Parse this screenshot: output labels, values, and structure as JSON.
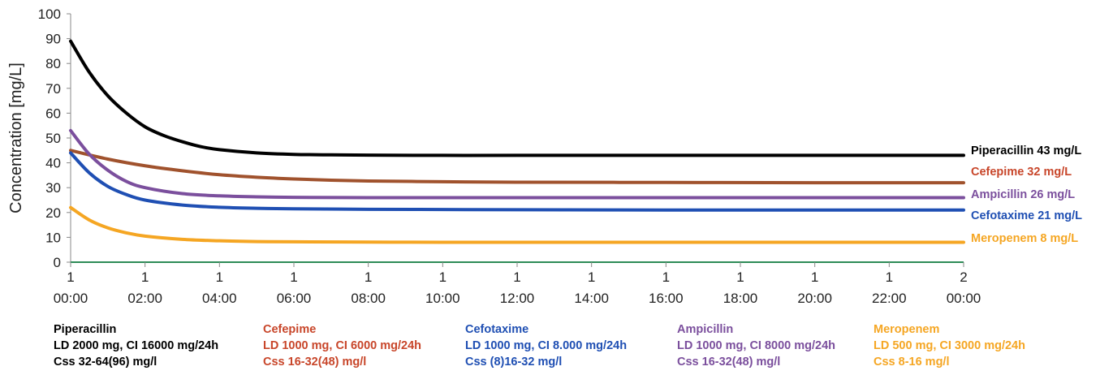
{
  "chart_data": {
    "type": "line",
    "title": "",
    "xlabel": "",
    "ylabel": "Concentration [mg/L]",
    "ylim": [
      0,
      100
    ],
    "yticks": [
      0,
      10,
      20,
      30,
      40,
      50,
      60,
      70,
      80,
      90,
      100
    ],
    "xlim": [
      0,
      24
    ],
    "x_unit": "hours",
    "xticks": [
      {
        "hour": 0,
        "day": "1",
        "time": "00:00"
      },
      {
        "hour": 2,
        "day": "1",
        "time": "02:00"
      },
      {
        "hour": 4,
        "day": "1",
        "time": "04:00"
      },
      {
        "hour": 6,
        "day": "1",
        "time": "06:00"
      },
      {
        "hour": 8,
        "day": "1",
        "time": "08:00"
      },
      {
        "hour": 10,
        "day": "1",
        "time": "10:00"
      },
      {
        "hour": 12,
        "day": "1",
        "time": "12:00"
      },
      {
        "hour": 14,
        "day": "1",
        "time": "14:00"
      },
      {
        "hour": 16,
        "day": "1",
        "time": "16:00"
      },
      {
        "hour": 18,
        "day": "1",
        "time": "18:00"
      },
      {
        "hour": 20,
        "day": "1",
        "time": "20:00"
      },
      {
        "hour": 22,
        "day": "1",
        "time": "22:00"
      },
      {
        "hour": 24,
        "day": "2",
        "time": "00:00"
      }
    ],
    "grid": false,
    "series": [
      {
        "name": "Piperacillin",
        "color": "#000000",
        "end_label": "Piperacillin 43 mg/L",
        "legend": [
          "Piperacillin",
          "LD 2000 mg, CI 16000 mg/24h",
          "Css 32-64(96) mg/l"
        ],
        "x": [
          0,
          0.5,
          1,
          1.5,
          2,
          2.5,
          3,
          3.5,
          4,
          5,
          6,
          7,
          8,
          10,
          12,
          16,
          20,
          24
        ],
        "values": [
          89,
          76.5,
          67,
          60,
          54.5,
          51,
          48.5,
          46.5,
          45.3,
          44,
          43.4,
          43.2,
          43.1,
          43,
          43,
          43,
          43,
          43
        ]
      },
      {
        "name": "Cefepime",
        "color": "#a0522d",
        "end_label": "Cefepime 32 mg/L",
        "legend": [
          "Cefepime",
          "LD 1000 mg, CI 6000 mg/24h",
          "Css 16-32(48) mg/l"
        ],
        "x": [
          0,
          1,
          2,
          3,
          4,
          5,
          6,
          7,
          8,
          10,
          12,
          16,
          20,
          24
        ],
        "values": [
          45,
          41.5,
          38.8,
          36.8,
          35.2,
          34.2,
          33.5,
          33,
          32.7,
          32.4,
          32.2,
          32.1,
          32,
          32
        ]
      },
      {
        "name": "Ampicillin",
        "color": "#7b4f9d",
        "end_label": "Ampicillin 26 mg/L",
        "legend": [
          "Ampicillin",
          "LD 1000 mg, CI 8000 mg/24h",
          "Css 16-32(48) mg/l"
        ],
        "x": [
          0,
          0.5,
          1,
          1.5,
          2,
          3,
          4,
          5,
          6,
          8,
          10,
          12,
          16,
          20,
          24
        ],
        "values": [
          53,
          43.5,
          37,
          32.5,
          30,
          27.6,
          26.7,
          26.3,
          26.1,
          26,
          26,
          26,
          26,
          26,
          26
        ]
      },
      {
        "name": "Cefotaxime",
        "color": "#1f4fb3",
        "end_label": "Cefotaxime 21 mg/L",
        "legend": [
          "Cefotaxime",
          "LD 1000 mg, CI 8.000 mg/24h",
          "Css (8)16-32 mg/l"
        ],
        "x": [
          0,
          0.5,
          1,
          1.5,
          2,
          3,
          4,
          5,
          6,
          8,
          10,
          12,
          16,
          20,
          24
        ],
        "values": [
          44,
          36,
          30.5,
          27.2,
          25,
          23,
          22.1,
          21.7,
          21.5,
          21.3,
          21.2,
          21.1,
          21,
          21,
          21
        ]
      },
      {
        "name": "Meropenem",
        "color": "#f5a623",
        "end_label": "Meropenem 8 mg/L",
        "legend": [
          "Meropenem",
          "LD 500 mg, CI 3000 mg/24h",
          "Css 8-16 mg/l"
        ],
        "x": [
          0,
          0.5,
          1,
          1.5,
          2,
          3,
          4,
          5,
          6,
          8,
          10,
          12,
          16,
          20,
          24
        ],
        "values": [
          22,
          17,
          13.8,
          11.8,
          10.5,
          9.2,
          8.6,
          8.3,
          8.2,
          8.1,
          8,
          8,
          8,
          8,
          8
        ]
      }
    ]
  }
}
